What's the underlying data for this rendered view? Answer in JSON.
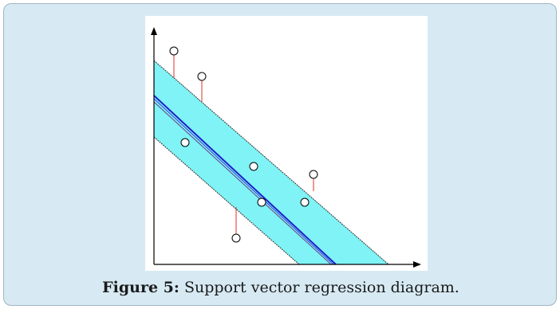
{
  "caption": {
    "label": "Figure 5:",
    "text": " Support vector regression diagram."
  },
  "colors": {
    "card_background": "#d7eaf3",
    "tube_fill": "#7ff3f5",
    "regression_line": "#1f1fcc",
    "residual_line": "#e0302a",
    "axis": "#000000"
  },
  "diagram": {
    "elements": [
      "x-axis",
      "y-axis",
      "epsilon-tube",
      "regression-line",
      "data-points",
      "residual-lines"
    ]
  }
}
